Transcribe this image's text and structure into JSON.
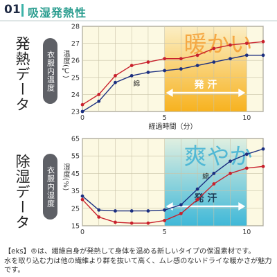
{
  "header": {
    "number": "01",
    "title": "吸湿発熱性"
  },
  "panels": [
    {
      "side_title": "発熱データ",
      "pill": "衣服内温度",
      "unit": "温度(℃)"
    },
    {
      "side_title": "除湿データ",
      "pill": "衣服内湿度",
      "unit": "湿度(%)"
    }
  ],
  "colors": {
    "eks": "#c8202c",
    "cotton": "#1b2f80",
    "warm": "#f7b21f",
    "cool": "#3fb8d8",
    "plot_bg": "#fcf9e2"
  },
  "chart_data": [
    {
      "type": "line",
      "title": "",
      "xlabel": "経過時間（分）",
      "ylabel": "温度(℃)",
      "xlim": [
        0,
        11
      ],
      "ylim": [
        23,
        28
      ],
      "xticks": [
        0,
        5,
        10
      ],
      "yticks": [
        23,
        24,
        25,
        26,
        27,
        28
      ],
      "grid": true,
      "highlight": {
        "x0": 5,
        "x1": 10,
        "label": "暖かい",
        "arrow_label": "発 汗"
      },
      "series_labels": [
        {
          "series": 1,
          "text": "綿",
          "x": 3.3,
          "y": 24.5
        }
      ],
      "series": [
        {
          "name": "",
          "color": "#c8202c",
          "x": [
            0,
            1,
            2,
            3,
            4,
            5,
            6,
            7,
            8,
            9,
            10,
            11
          ],
          "values": [
            23.4,
            24.0,
            25.1,
            25.7,
            25.9,
            26.1,
            26.1,
            26.3,
            26.7,
            26.9,
            27.0,
            27.1
          ]
        },
        {
          "name": "",
          "color": "#1b2f80",
          "x": [
            0,
            1,
            2,
            3,
            4,
            5,
            6,
            7,
            8,
            9,
            10,
            11
          ],
          "values": [
            23.0,
            23.6,
            24.7,
            25.1,
            25.3,
            25.4,
            25.5,
            25.7,
            25.9,
            26.1,
            26.3,
            26.3
          ]
        }
      ]
    },
    {
      "type": "line",
      "title": "",
      "xlabel": "",
      "ylabel": "湿度(%)",
      "xlim": [
        0,
        11
      ],
      "ylim": [
        15,
        65
      ],
      "xticks": [
        0,
        5,
        10
      ],
      "yticks": [
        15,
        25,
        35,
        45,
        55,
        65
      ],
      "grid": true,
      "highlight": {
        "x0": 5,
        "x1": 10,
        "label": "爽やか",
        "arrow_label": "発 汗"
      },
      "series_labels": [
        {
          "series": 1,
          "text": "綿",
          "x": 7.5,
          "y": 42
        }
      ],
      "series": [
        {
          "name": "",
          "color": "#c8202c",
          "x": [
            0,
            1,
            2,
            3,
            4,
            5,
            6,
            7,
            8,
            9,
            10,
            11
          ],
          "values": [
            30,
            20,
            17,
            16.5,
            16.5,
            18,
            22,
            30,
            39,
            45,
            48,
            49
          ]
        },
        {
          "name": "",
          "color": "#1b2f80",
          "x": [
            0,
            1,
            2,
            3,
            4,
            5,
            6,
            7,
            8,
            9,
            10,
            11
          ],
          "values": [
            32,
            24,
            23.5,
            23.5,
            23.5,
            24,
            27,
            36,
            45,
            52,
            56,
            59
          ]
        }
      ]
    }
  ],
  "caption": [
    "【eks】®は、繊維自身が発熱して身体を温める新しいタイプの保温素材です。",
    "水を取り込む力は他の繊維より群を抜いて高く、ムレ感のないドライな暖かさが魅力です。"
  ]
}
